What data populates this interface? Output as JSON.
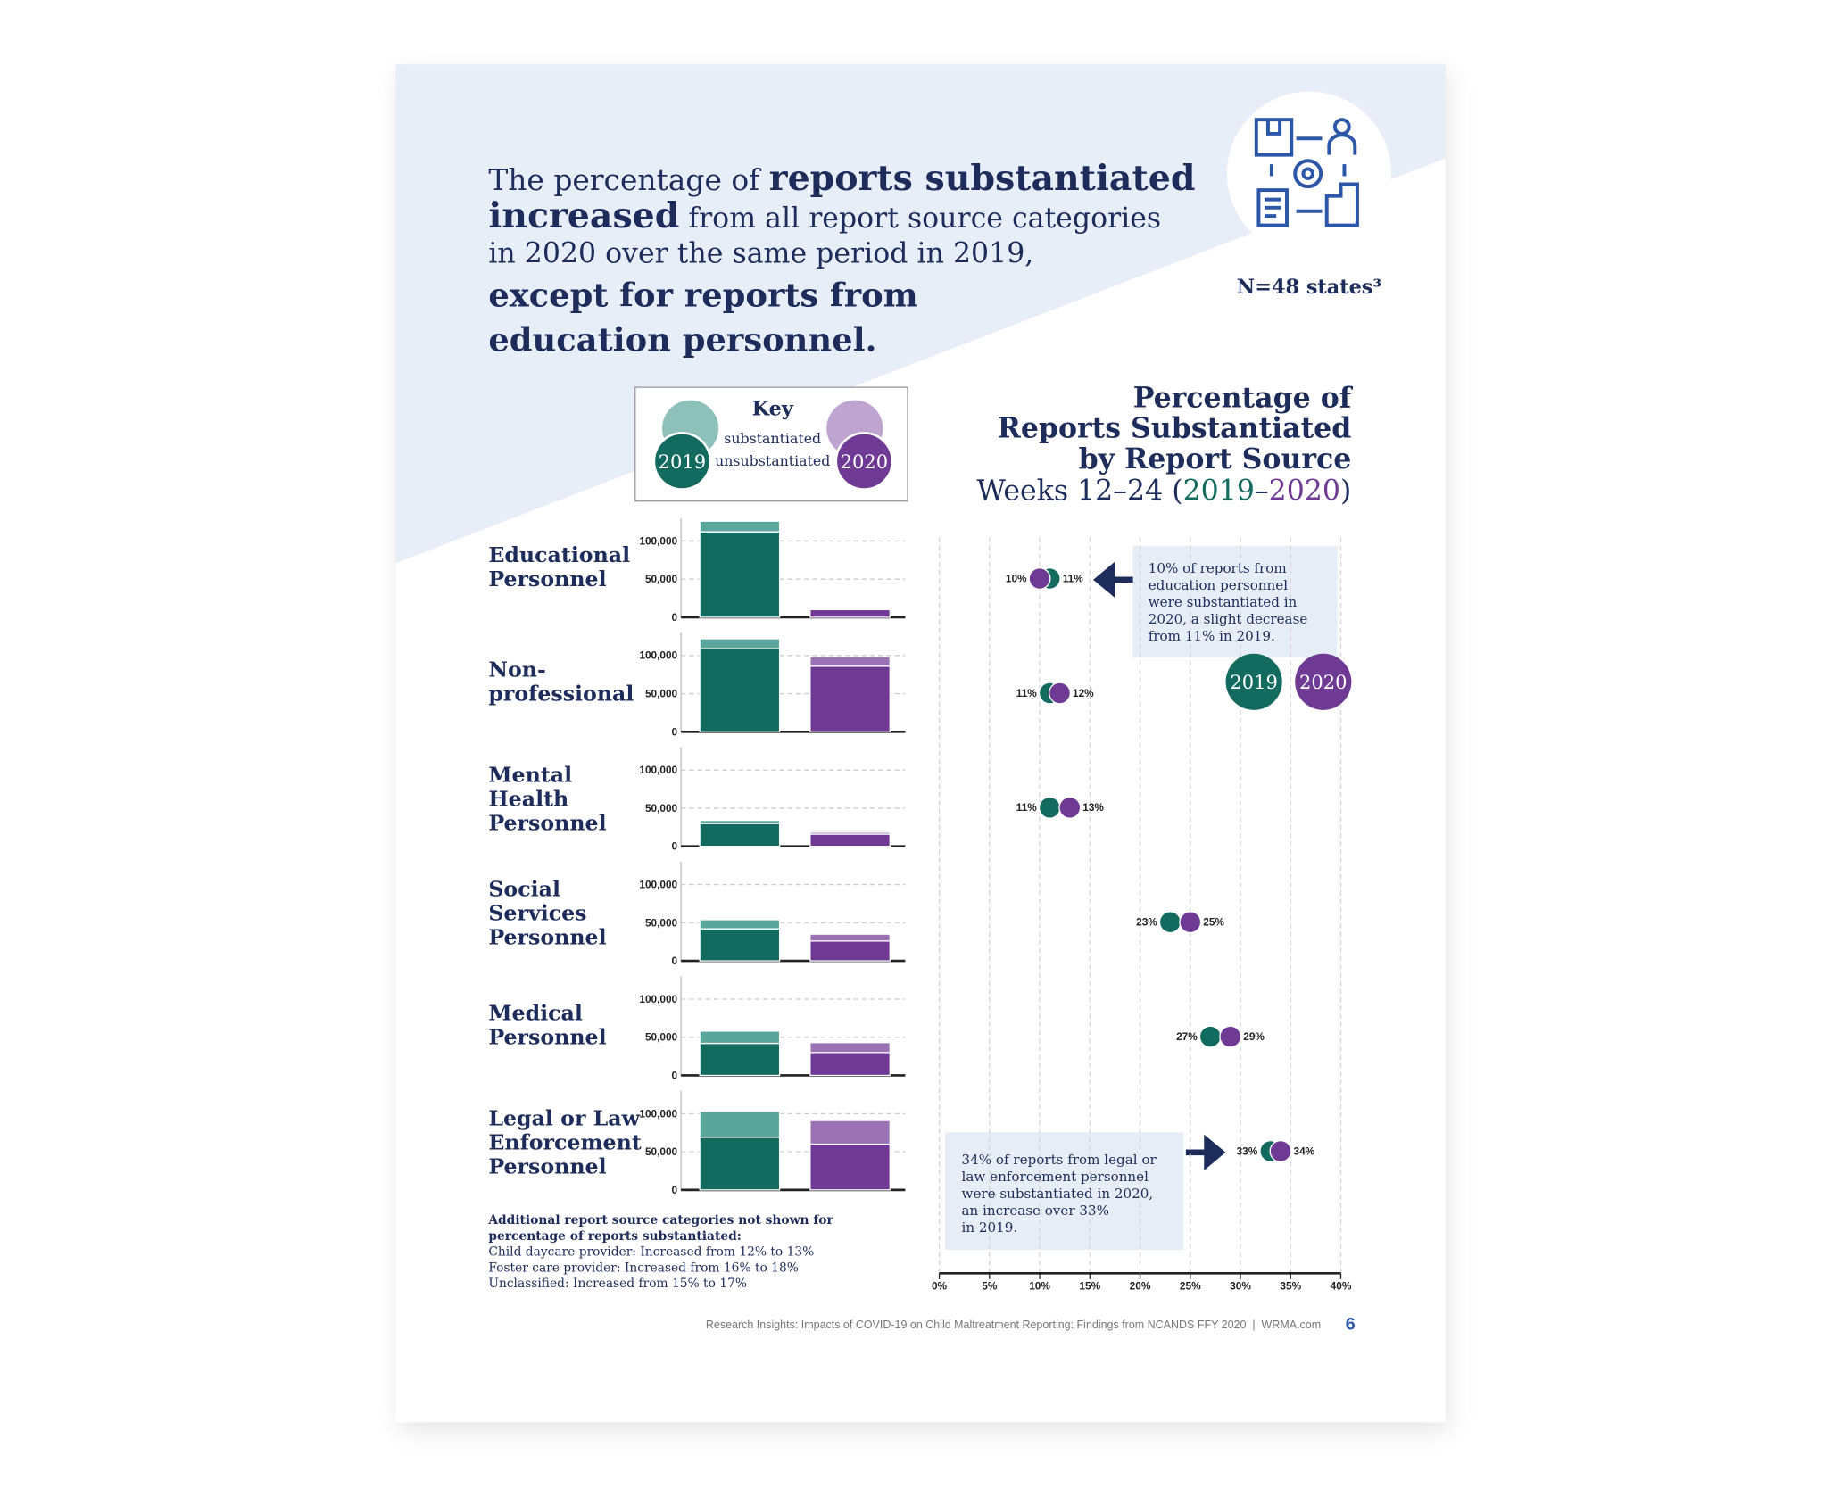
{
  "header": {
    "headline": [
      "The percentage of ",
      "reports substantiated",
      "increased",
      " from all report source categories",
      "in 2020 over the same period in 2019,",
      "except for reports from",
      "education personnel."
    ],
    "sample": "N=48 states³"
  },
  "key": {
    "title": "Key",
    "substantiated": "substantiated",
    "unsubstantiated": "unsubstantiated",
    "years": [
      "2019",
      "2020"
    ]
  },
  "chart_data": [
    {
      "type": "bar",
      "label": [
        "Educational",
        "Personnel"
      ],
      "ylim": [
        0,
        130000
      ],
      "yticks": [
        0,
        {
          "value": 50000,
          "label": "50,000"
        },
        {
          "value": 100000,
          "label": "100,000"
        }
      ],
      "series": [
        {
          "colors": [
            "#136b5f",
            "#6f3a93"
          ],
          "values": [
            112000,
            10000
          ]
        },
        {
          "colors": [
            "#5ba69c",
            "#9b73b5"
          ],
          "values": [
            14000,
            1000
          ]
        }
      ]
    },
    {
      "type": "bar",
      "label": [
        "Non-",
        "professional"
      ],
      "ylim": [
        0,
        130000
      ],
      "yticks": [
        0,
        {
          "value": 50000,
          "label": "50,000"
        },
        {
          "value": 100000,
          "label": "100,000"
        }
      ],
      "series": [
        {
          "colors": [
            "#136b5f",
            "#6f3a93"
          ],
          "values": [
            109000,
            86000
          ]
        },
        {
          "colors": [
            "#5ba69c",
            "#9b73b5"
          ],
          "values": [
            13000,
            12500
          ]
        }
      ]
    },
    {
      "type": "bar",
      "label": [
        "Mental",
        "Health",
        "Personnel"
      ],
      "ylim": [
        0,
        130000
      ],
      "yticks": [
        0,
        {
          "value": 50000,
          "label": "50,000"
        },
        {
          "value": 100000,
          "label": "100,000"
        }
      ],
      "series": [
        {
          "colors": [
            "#136b5f",
            "#6f3a93"
          ],
          "values": [
            30000,
            16000
          ]
        },
        {
          "colors": [
            "#5ba69c",
            "#9b73b5"
          ],
          "values": [
            4000,
            2500
          ]
        }
      ]
    },
    {
      "type": "bar",
      "label": [
        "Social",
        "Services",
        "Personnel"
      ],
      "ylim": [
        0,
        130000
      ],
      "yticks": [
        0,
        {
          "value": 50000,
          "label": "50,000"
        },
        {
          "value": 100000,
          "label": "100,000"
        }
      ],
      "series": [
        {
          "colors": [
            "#136b5f",
            "#6f3a93"
          ],
          "values": [
            42000,
            26000
          ]
        },
        {
          "colors": [
            "#5ba69c",
            "#9b73b5"
          ],
          "values": [
            12000,
            9000
          ]
        }
      ]
    },
    {
      "type": "bar",
      "label": [
        "Medical",
        "Personnel"
      ],
      "ylim": [
        0,
        130000
      ],
      "yticks": [
        0,
        {
          "value": 50000,
          "label": "50,000"
        },
        {
          "value": 100000,
          "label": "100,000"
        }
      ],
      "series": [
        {
          "colors": [
            "#136b5f",
            "#6f3a93"
          ],
          "values": [
            42000,
            30000
          ]
        },
        {
          "colors": [
            "#5ba69c",
            "#9b73b5"
          ],
          "values": [
            16000,
            13000
          ]
        }
      ]
    },
    {
      "type": "bar",
      "label": [
        "Legal or Law",
        "Enforcement",
        "Personnel"
      ],
      "ylim": [
        0,
        130000
      ],
      "yticks": [
        0,
        {
          "value": 50000,
          "label": "50,000"
        },
        {
          "value": 100000,
          "label": "100,000"
        }
      ],
      "series": [
        {
          "colors": [
            "#136b5f",
            "#6f3a93"
          ],
          "values": [
            69000,
            60000
          ]
        },
        {
          "colors": [
            "#5ba69c",
            "#9b73b5"
          ],
          "values": [
            34000,
            31000
          ]
        }
      ]
    },
    {
      "type": "dot",
      "title": [
        "Percentage of",
        "Reports Substantiated",
        "by Report Source"
      ],
      "subtitle": [
        "Weeks 12–24 (",
        "2019",
        "–",
        "2020",
        ")"
      ],
      "xlim": [
        0,
        40
      ],
      "xticks": [
        {
          "value": 0,
          "label": "0%"
        },
        {
          "value": 5,
          "label": "5%"
        },
        {
          "value": 10,
          "label": "10%"
        },
        {
          "value": 15,
          "label": "15%"
        },
        {
          "value": 20,
          "label": "20%"
        },
        {
          "value": 25,
          "label": "25%"
        },
        {
          "value": 30,
          "label": "30%"
        },
        {
          "value": 35,
          "label": "35%"
        },
        {
          "value": 40,
          "label": "40%"
        }
      ],
      "series": [
        {
          "name": "2019",
          "color": "#136b5f",
          "values": [
            11,
            11,
            11,
            23,
            27,
            33
          ],
          "value_labels": [
            "11%",
            "11%",
            "11%",
            "23%",
            "27%",
            "33%"
          ]
        },
        {
          "name": "2020",
          "color": "#6f3a93",
          "values": [
            10,
            12,
            13,
            25,
            29,
            34
          ],
          "value_labels": [
            "10%",
            "12%",
            "13%",
            "25%",
            "29%",
            "34%"
          ]
        }
      ],
      "annotations": [
        {
          "text": [
            "10% of reports from",
            "education personnel",
            "were substantiated in",
            "2020, a slight decrease",
            "from 11% in 2019."
          ]
        },
        {
          "text": [
            "34% of reports from legal or",
            "law enforcement personnel",
            "were substantiated in 2020,",
            "an increase over 33%",
            "in 2019."
          ]
        }
      ]
    }
  ],
  "notes": {
    "title": [
      "Additional report source categories not shown for",
      "percentage of reports substantiated:"
    ],
    "items": [
      "Child daycare provider: Increased from 12% to 13%",
      "Foster care provider: Increased from 16% to 18%",
      "Unclassified: Increased from 15% to 17%"
    ]
  },
  "footer": {
    "text": "Research Insights: Impacts of COVID-19 on Child Maltreatment Reporting: Findings from NCANDS FFY 2020  |  WRMA.com",
    "page": "6"
  }
}
